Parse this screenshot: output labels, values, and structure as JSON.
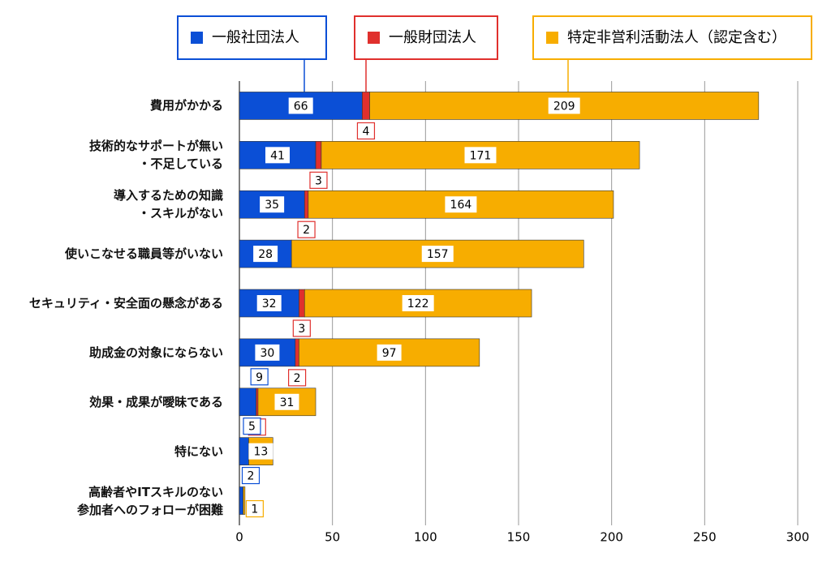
{
  "chart_data": {
    "type": "stacked-bar-horizontal",
    "categories": [
      "費用がかかる",
      "技術的なサポートが無い\n・不足している",
      "導入するための知識\n・スキルがない",
      "使いこなせる職員等がいない",
      "セキュリティ・安全面の懸念がある",
      "助成金の対象にならない",
      "効果・成果が曖昧である",
      "特にない",
      "高齢者やITスキルのない\n参加者へのフォローが困難"
    ],
    "series": [
      {
        "name": "一般社団法人",
        "color": "#0b4fd6",
        "values": [
          66,
          41,
          35,
          28,
          32,
          30,
          9,
          5,
          2
        ]
      },
      {
        "name": "一般財団法人",
        "color": "#e0302d",
        "values": [
          4,
          3,
          2,
          null,
          3,
          2,
          1,
          null,
          null
        ]
      },
      {
        "name": "特定非営利活動法人（認定含む）",
        "color": "#f7ad00",
        "values": [
          209,
          171,
          164,
          157,
          122,
          97,
          31,
          13,
          1
        ]
      }
    ],
    "xlim": [
      0,
      300
    ],
    "xticks": [
      0,
      50,
      100,
      150,
      200,
      250,
      300
    ],
    "grid": true,
    "legend": "top"
  }
}
